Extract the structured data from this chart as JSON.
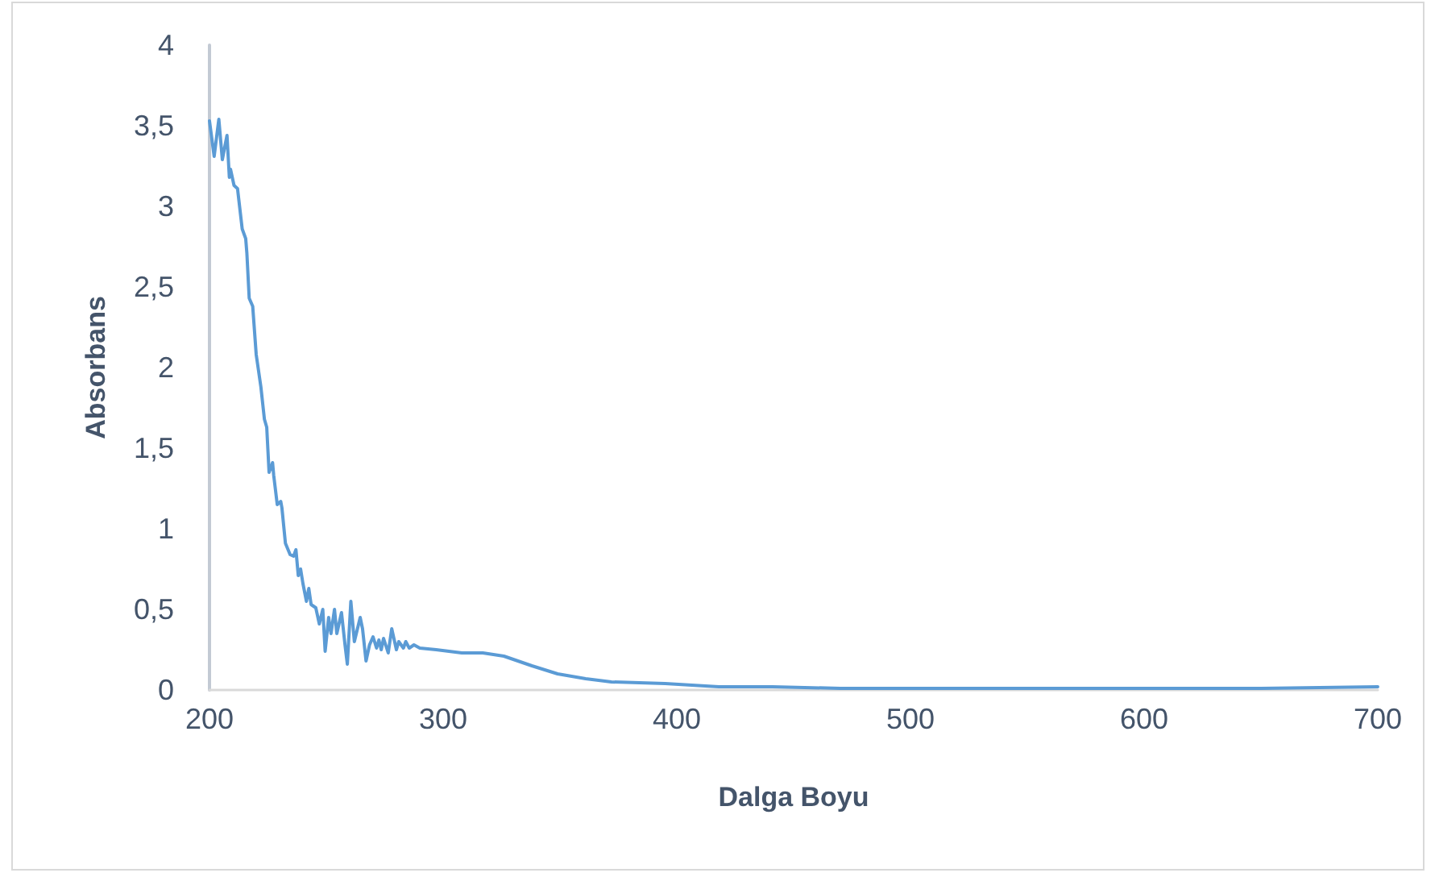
{
  "chart_data": {
    "type": "line",
    "xlabel": "Dalga Boyu",
    "ylabel": "Absorbans",
    "xlim": [
      200,
      700
    ],
    "xticks": [
      200,
      300,
      400,
      500,
      600,
      700
    ],
    "ylim": [
      0,
      4
    ],
    "yticks": [
      0,
      {
        "value": 0.5,
        "label": "0,5"
      },
      1,
      {
        "value": 1.5,
        "label": "1,5"
      },
      2,
      {
        "value": 2.5,
        "label": "2,5"
      },
      3,
      {
        "value": 3.5,
        "label": "3,5"
      },
      4
    ],
    "marker": "none",
    "line_style": "solid",
    "series": [
      {
        "color": "#5b9bd5",
        "x": [
          200,
          202,
          204,
          205.5,
          207.5,
          208.5,
          209,
          210.5,
          212,
          214,
          215.5,
          216,
          217,
          218.5,
          220,
          222,
          223.5,
          224.5,
          225.5,
          227,
          227.5,
          229,
          230.5,
          231,
          232.5,
          234.5,
          236,
          237,
          238,
          239,
          240,
          241.5,
          242.5,
          243.5,
          245.5,
          247,
          248.5,
          249.5,
          251,
          252,
          253.5,
          254.5,
          256.5,
          258,
          259,
          260.5,
          262,
          264.5,
          265.5,
          267,
          268.5,
          270,
          271.5,
          272.5,
          273.5,
          274.5,
          276.5,
          278,
          280,
          281,
          283,
          284,
          285.5,
          287.5,
          290,
          297,
          308,
          317,
          326,
          338,
          349,
          361,
          372,
          395,
          418,
          441,
          470,
          500,
          550,
          600,
          650,
          700
        ],
        "values": [
          3.53,
          3.31,
          3.54,
          3.29,
          3.44,
          3.18,
          3.23,
          3.13,
          3.11,
          2.86,
          2.8,
          2.71,
          2.43,
          2.38,
          2.08,
          1.88,
          1.68,
          1.63,
          1.35,
          1.41,
          1.33,
          1.15,
          1.17,
          1.13,
          0.91,
          0.84,
          0.83,
          0.87,
          0.71,
          0.75,
          0.66,
          0.55,
          0.63,
          0.53,
          0.51,
          0.41,
          0.5,
          0.24,
          0.45,
          0.35,
          0.5,
          0.35,
          0.48,
          0.28,
          0.16,
          0.55,
          0.3,
          0.45,
          0.38,
          0.18,
          0.28,
          0.33,
          0.26,
          0.31,
          0.25,
          0.32,
          0.23,
          0.38,
          0.25,
          0.3,
          0.26,
          0.3,
          0.26,
          0.28,
          0.26,
          0.25,
          0.23,
          0.23,
          0.21,
          0.15,
          0.1,
          0.07,
          0.05,
          0.04,
          0.02,
          0.02,
          0.01,
          0.01,
          0.01,
          0.01,
          0.01,
          0.02
        ]
      }
    ]
  }
}
